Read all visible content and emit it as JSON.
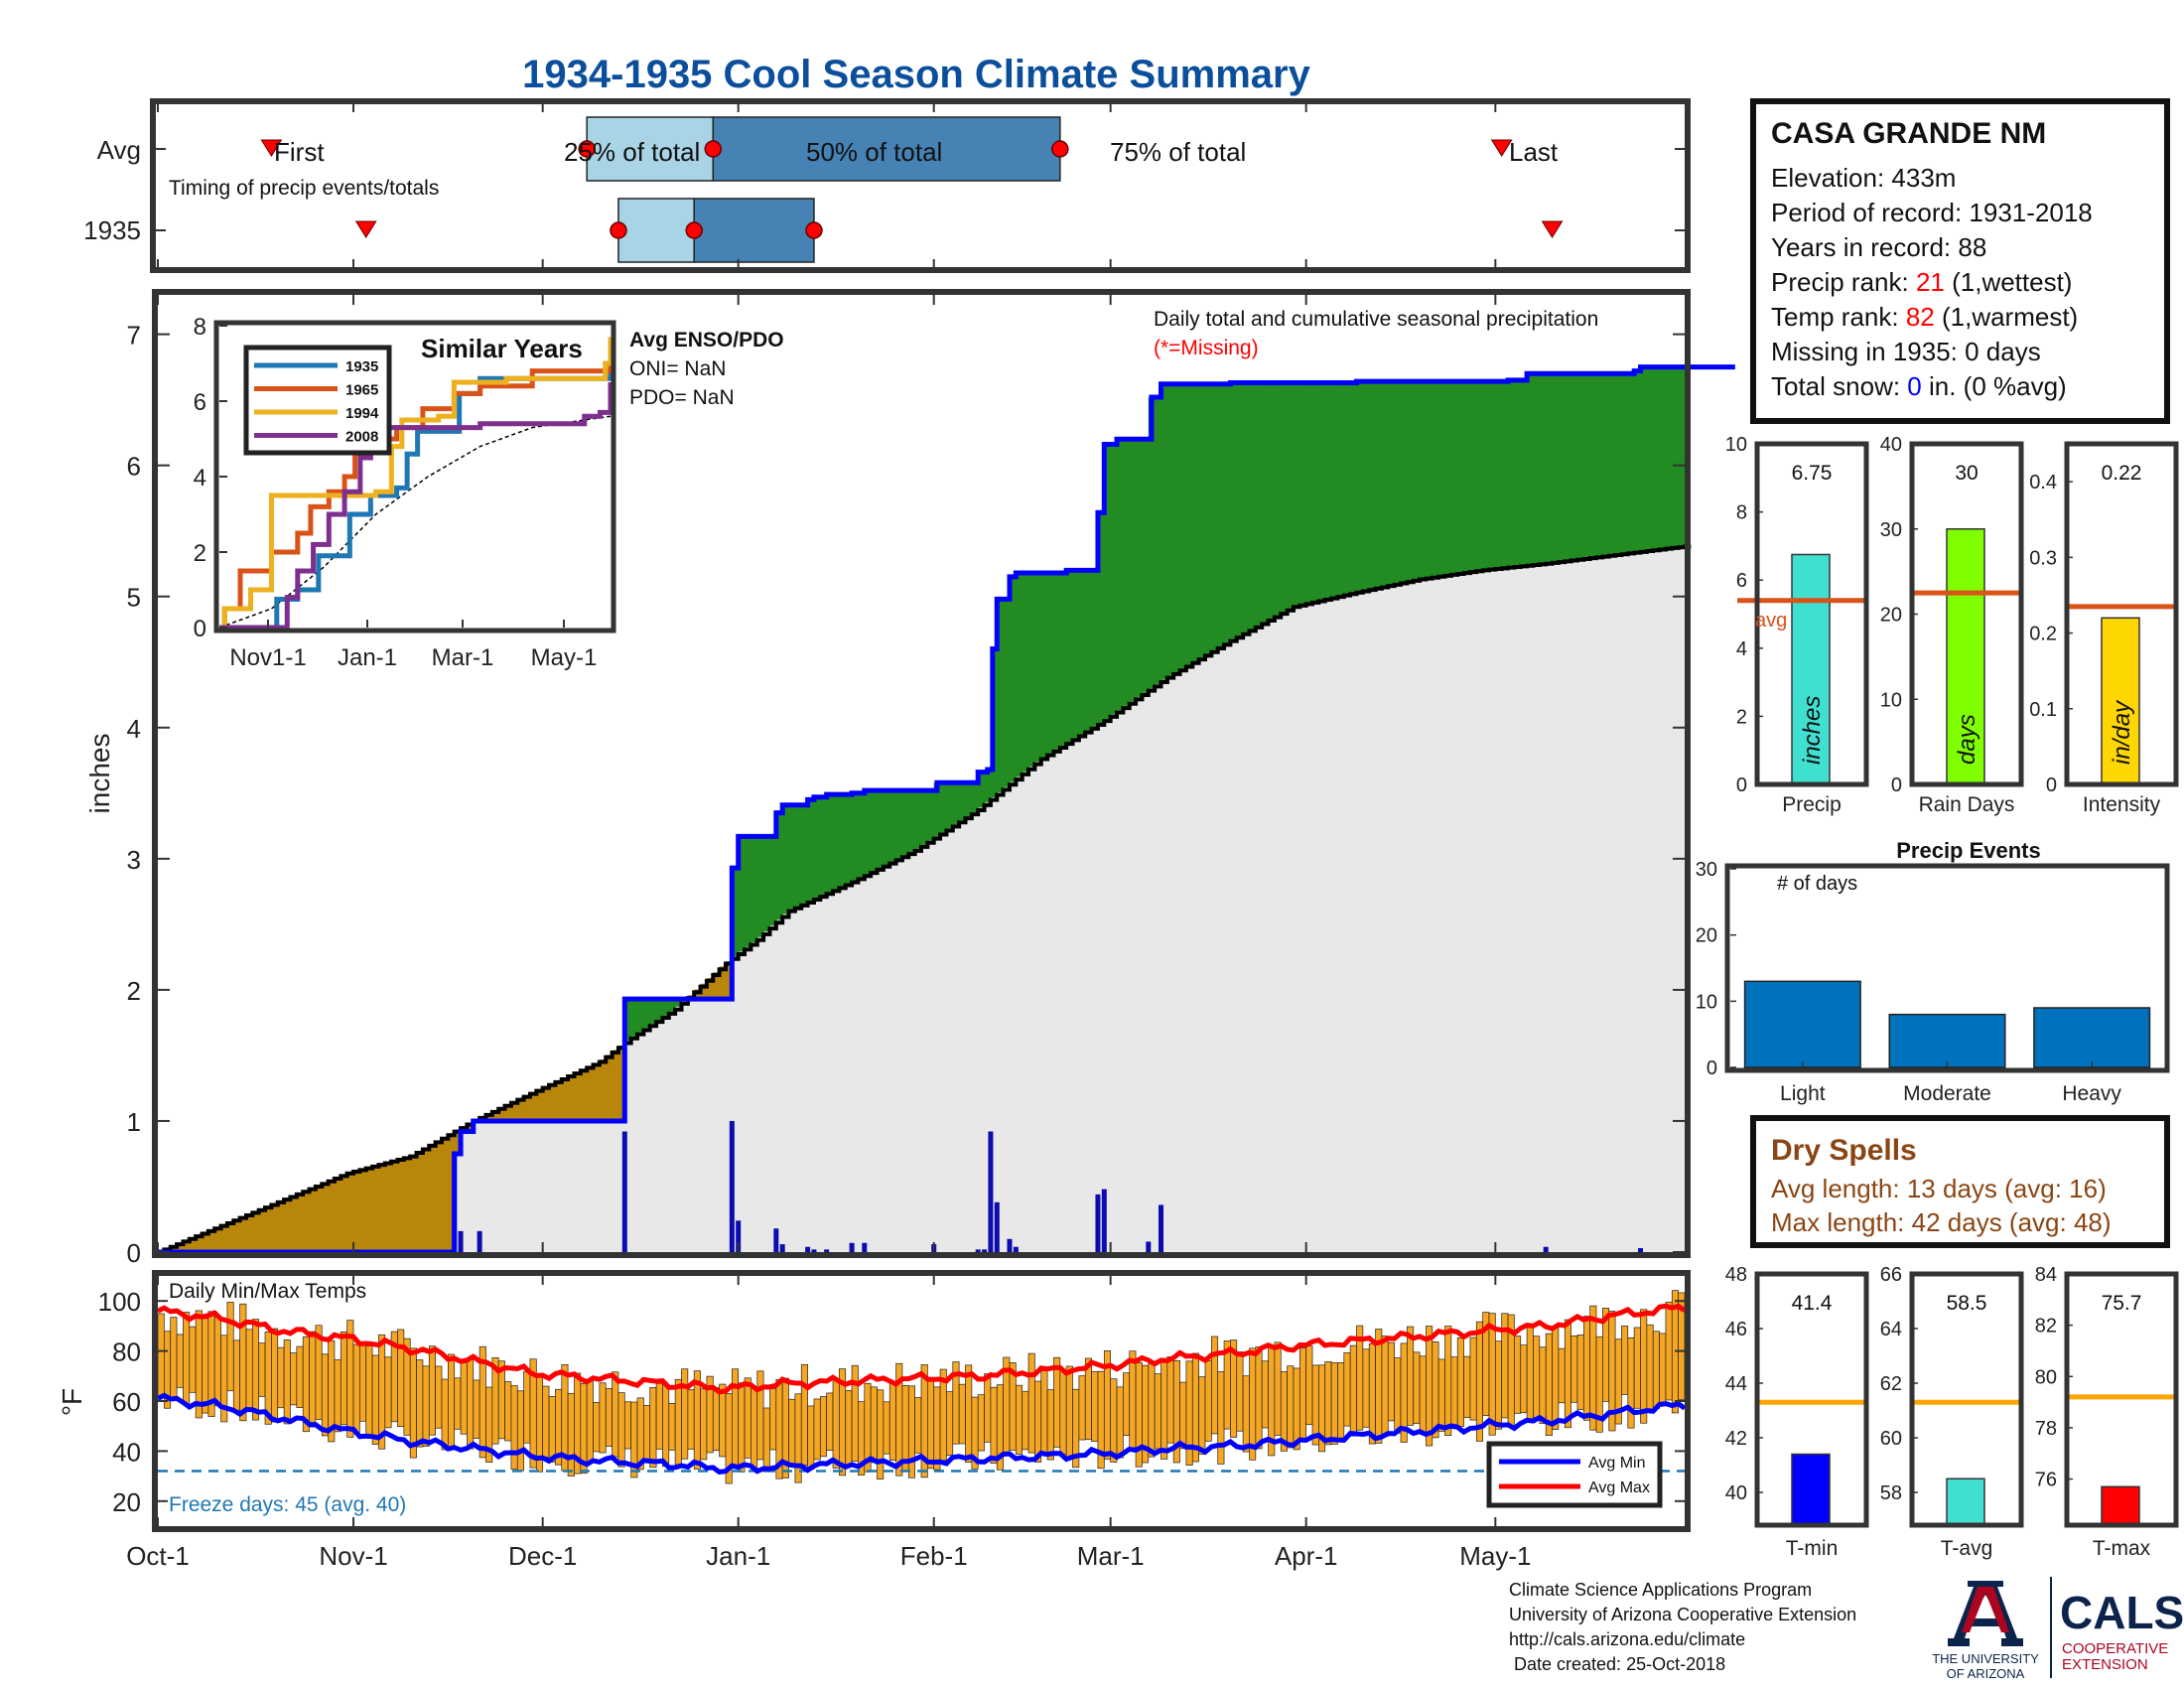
{
  "title": "1934-1935 Cool Season Climate Summary",
  "colors": {
    "title": "#0b4f9c",
    "light_box": "#a8d4e6",
    "dark_box": "#4682b4",
    "precip_line": "#0000ff",
    "green_fill": "#228b22",
    "brown_fill": "#b8860b",
    "avg_fill": "#e8e8e8",
    "temp_bar": "#f5a623",
    "avg_max": "#ff0000",
    "avg_min": "#0000ff",
    "freeze": "#1f77b4",
    "rank_red": "#ff0000",
    "snow_blue": "#0000ff",
    "dry_spells": "#8b4513",
    "s1935": "#1f77b4",
    "s1965": "#d95319",
    "s1994": "#edb120",
    "s2008": "#7e2f8e",
    "precip_bar": "#40e0d0",
    "raindays_bar": "#7fff00",
    "intensity_bar": "#ffd700",
    "avg_line": "#d95319",
    "events_bar": "#0072bd",
    "tavg_line": "#ffa500",
    "tmin_bar": "#0000ff",
    "tavg_bar": "#40e0d0",
    "tmax_bar": "#ff0000",
    "ua_red": "#ab0520",
    "ua_blue": "#0c234b"
  },
  "timing": {
    "row_labels": [
      "Avg",
      "1935"
    ],
    "first_label": "First",
    "last_label": "Last",
    "p25_label": "25% of total",
    "p50_label": "50% of total",
    "p75_label": "75% of total",
    "caption": "Timing of precip events/totals",
    "avg": {
      "first": "Oct-19",
      "p25": "Dec-8",
      "p50": "Dec-28",
      "p75": "Feb-21",
      "last": "May-2"
    },
    "y1935": {
      "first": "Nov-3",
      "p25": "Dec-13",
      "p50": "Dec-25",
      "p75": "Jan-13",
      "last": "May-10"
    }
  },
  "station": {
    "name": "CASA GRANDE NM",
    "elevation_label": "Elevation: 433m",
    "period_label": "Period of record: 1931-2018",
    "years_label": "Years in record: 88",
    "precip_rank_prefix": "Precip rank: ",
    "precip_rank": "21",
    "precip_rank_suffix": " (1,wettest)",
    "temp_rank_prefix": "Temp rank: ",
    "temp_rank": "82",
    "temp_rank_suffix": " (1,warmest)",
    "missing_label": "Missing in 1935: 0 days",
    "snow_prefix": "Total snow: ",
    "snow_value": "0",
    "snow_suffix": " in. (0 %avg)"
  },
  "main_chart": {
    "ylabel": "inches",
    "ylim": [
      0,
      7.3
    ],
    "yticks": [
      "0",
      "1",
      "2",
      "3",
      "4",
      "5",
      "6",
      "7"
    ],
    "legend_line1": "Daily total and cumulative seasonal precipitation",
    "legend_line2": "(*=Missing)",
    "enso_title": "Avg ENSO/PDO",
    "oni_label": "ONI= NaN",
    "pdo_label": "PDO= NaN"
  },
  "chart_data": [
    {
      "type": "line",
      "title": "Daily total and cumulative seasonal precipitation",
      "ylabel": "inches",
      "ylim": [
        0,
        7.3
      ],
      "x_labels": [
        "Oct-1",
        "Nov-1",
        "Dec-1",
        "Jan-1",
        "Feb-1",
        "Mar-1",
        "Apr-1",
        "May-1"
      ],
      "cumulative_1935": [
        [
          0,
          0
        ],
        [
          46,
          0
        ],
        [
          47,
          0.75
        ],
        [
          48,
          0.92
        ],
        [
          50,
          1.0
        ],
        [
          73,
          1.0
        ],
        [
          74,
          1.93
        ],
        [
          90,
          1.93
        ],
        [
          91,
          2.93
        ],
        [
          92,
          3.17
        ],
        [
          97,
          3.17
        ],
        [
          98,
          3.35
        ],
        [
          99,
          3.41
        ],
        [
          102,
          3.41
        ],
        [
          103,
          3.45
        ],
        [
          104,
          3.47
        ],
        [
          106,
          3.49
        ],
        [
          110,
          3.5
        ],
        [
          112,
          3.52
        ],
        [
          123,
          3.52
        ],
        [
          123.5,
          3.58
        ],
        [
          130,
          3.66
        ],
        [
          130,
          3.66
        ],
        [
          131,
          3.66
        ],
        [
          131.5,
          3.68
        ],
        [
          132,
          3.68
        ],
        [
          132.3,
          4.6
        ],
        [
          133,
          4.98
        ],
        [
          135,
          5.15
        ],
        [
          136,
          5.18
        ],
        [
          144,
          5.2
        ],
        [
          148,
          5.2
        ],
        [
          149,
          5.64
        ],
        [
          150,
          6.16
        ],
        [
          152,
          6.2
        ],
        [
          157,
          6.2
        ],
        [
          157.5,
          6.52
        ],
        [
          159,
          6.62
        ],
        [
          162,
          6.62
        ],
        [
          170,
          6.63
        ],
        [
          190,
          6.64
        ],
        [
          214,
          6.65
        ],
        [
          217,
          6.7
        ],
        [
          234,
          6.72
        ],
        [
          235,
          6.75
        ],
        [
          250,
          6.75
        ]
      ],
      "average_cumulative": [
        [
          0,
          0
        ],
        [
          10,
          0.2
        ],
        [
          20,
          0.4
        ],
        [
          30,
          0.6
        ],
        [
          40,
          0.73
        ],
        [
          50,
          1.0
        ],
        [
          60,
          1.23
        ],
        [
          70,
          1.45
        ],
        [
          75,
          1.63
        ],
        [
          82,
          1.85
        ],
        [
          90,
          2.2
        ],
        [
          95,
          2.38
        ],
        [
          100,
          2.6
        ],
        [
          110,
          2.82
        ],
        [
          120,
          3.06
        ],
        [
          130,
          3.37
        ],
        [
          140,
          3.76
        ],
        [
          150,
          4.05
        ],
        [
          160,
          4.38
        ],
        [
          170,
          4.66
        ],
        [
          180,
          4.92
        ],
        [
          190,
          5.03
        ],
        [
          200,
          5.13
        ],
        [
          210,
          5.2
        ],
        [
          220,
          5.25
        ],
        [
          230,
          5.31
        ],
        [
          240,
          5.37
        ],
        [
          250,
          5.42
        ]
      ],
      "daily_1935": [
        [
          47,
          0.75
        ],
        [
          48,
          0.16
        ],
        [
          51,
          0.16
        ],
        [
          74,
          0.92
        ],
        [
          91,
          1.0
        ],
        [
          92,
          0.24
        ],
        [
          98,
          0.18
        ],
        [
          99,
          0.06
        ],
        [
          103,
          0.04
        ],
        [
          104,
          0.02
        ],
        [
          106,
          0.02
        ],
        [
          110,
          0.07
        ],
        [
          112,
          0.07
        ],
        [
          123,
          0.06
        ],
        [
          130,
          0.02
        ],
        [
          131,
          0.02
        ],
        [
          132,
          0.92
        ],
        [
          133,
          0.38
        ],
        [
          135,
          0.1
        ],
        [
          136,
          0.04
        ],
        [
          149,
          0.44
        ],
        [
          150,
          0.48
        ],
        [
          157,
          0.08
        ],
        [
          159,
          0.36
        ],
        [
          220,
          0.04
        ],
        [
          235,
          0.03
        ]
      ]
    },
    {
      "type": "line",
      "title": "Similar Years",
      "x_labels": [
        "Nov1-1",
        "Jan-1",
        "Mar-1",
        "May-1"
      ],
      "ylim": [
        0,
        8
      ],
      "yticks": [
        "0",
        "2",
        "4",
        "6",
        "8"
      ],
      "series": [
        {
          "name": "1935",
          "values": [
            [
              0,
              0
            ],
            [
              20,
              0
            ],
            [
              22,
              0.75
            ],
            [
              30,
              1.0
            ],
            [
              38,
              1.9
            ],
            [
              50,
              3.0
            ],
            [
              58,
              3.5
            ],
            [
              68,
              3.7
            ],
            [
              72,
              4.6
            ],
            [
              76,
              5.2
            ],
            [
              88,
              5.2
            ],
            [
              92,
              6.2
            ],
            [
              100,
              6.6
            ],
            [
              150,
              6.75
            ]
          ]
        },
        {
          "name": "1965",
          "values": [
            [
              0,
              0
            ],
            [
              2,
              0.5
            ],
            [
              8,
              1.5
            ],
            [
              18,
              1.5
            ],
            [
              20,
              2.0
            ],
            [
              30,
              2.5
            ],
            [
              35,
              3.2
            ],
            [
              42,
              3.6
            ],
            [
              48,
              4.0
            ],
            [
              52,
              4.6
            ],
            [
              56,
              5.0
            ],
            [
              68,
              5.3
            ],
            [
              78,
              5.8
            ],
            [
              90,
              6.2
            ],
            [
              100,
              6.4
            ],
            [
              120,
              6.8
            ],
            [
              150,
              7.0
            ]
          ]
        },
        {
          "name": "1994",
          "values": [
            [
              0,
              0
            ],
            [
              2,
              0.5
            ],
            [
              12,
              1.0
            ],
            [
              18,
              1.0
            ],
            [
              20,
              3.5
            ],
            [
              40,
              3.5
            ],
            [
              60,
              3.6
            ],
            [
              66,
              4.8
            ],
            [
              70,
              5.5
            ],
            [
              84,
              5.6
            ],
            [
              90,
              6.5
            ],
            [
              110,
              6.6
            ],
            [
              140,
              6.6
            ],
            [
              148,
              7.0
            ],
            [
              150,
              7.7
            ]
          ]
        },
        {
          "name": "2008",
          "values": [
            [
              0,
              0
            ],
            [
              24,
              0
            ],
            [
              26,
              0.8
            ],
            [
              30,
              1.5
            ],
            [
              36,
              2.2
            ],
            [
              42,
              3.0
            ],
            [
              48,
              3.6
            ],
            [
              54,
              4.5
            ],
            [
              58,
              5.2
            ],
            [
              64,
              5.3
            ],
            [
              100,
              5.4
            ],
            [
              132,
              5.4
            ],
            [
              140,
              5.6
            ],
            [
              146,
              5.7
            ],
            [
              150,
              6.5
            ]
          ]
        }
      ],
      "average_cumulative": [
        [
          0,
          0
        ],
        [
          20,
          0.5
        ],
        [
          40,
          1.6
        ],
        [
          60,
          3.0
        ],
        [
          80,
          4.0
        ],
        [
          100,
          4.8
        ],
        [
          120,
          5.3
        ],
        [
          140,
          5.5
        ],
        [
          150,
          5.6
        ]
      ]
    },
    {
      "type": "bar",
      "categories": [
        "Precip",
        "Rain Days",
        "Intensity"
      ],
      "values": [
        6.75,
        30,
        0.22
      ],
      "units": [
        "inches",
        "days",
        "in/day"
      ],
      "averages": [
        5.4,
        22.5,
        0.235
      ],
      "ylims": [
        [
          0,
          10
        ],
        [
          0,
          40
        ],
        [
          0,
          0.45
        ]
      ],
      "avg_label": "avg"
    },
    {
      "type": "bar",
      "title": "Precip Events",
      "ylabel": "# of days",
      "categories": [
        "Light",
        "Moderate",
        "Heavy"
      ],
      "values": [
        13,
        8,
        9
      ],
      "ylim": [
        0,
        30
      ]
    },
    {
      "type": "bar",
      "title": "Daily Min/Max Temps",
      "ylabel": "°F",
      "ylim": [
        10,
        110
      ],
      "x_labels": [
        "Oct-1",
        "Nov-1",
        "Dec-1",
        "Jan-1",
        "Feb-1",
        "Mar-1",
        "Apr-1",
        "May-1"
      ],
      "avg_max": [
        [
          0,
          96
        ],
        [
          10,
          93
        ],
        [
          20,
          88
        ],
        [
          30,
          85
        ],
        [
          40,
          81
        ],
        [
          50,
          76
        ],
        [
          60,
          71
        ],
        [
          70,
          69
        ],
        [
          80,
          67
        ],
        [
          90,
          65
        ],
        [
          100,
          67
        ],
        [
          110,
          68
        ],
        [
          120,
          69
        ],
        [
          130,
          70
        ],
        [
          140,
          72
        ],
        [
          150,
          74
        ],
        [
          160,
          77
        ],
        [
          170,
          79
        ],
        [
          180,
          82
        ],
        [
          190,
          84
        ],
        [
          200,
          86
        ],
        [
          210,
          88
        ],
        [
          220,
          90
        ],
        [
          230,
          94
        ],
        [
          240,
          97
        ],
        [
          250,
          100
        ]
      ],
      "avg_min": [
        [
          0,
          61
        ],
        [
          10,
          58
        ],
        [
          20,
          53
        ],
        [
          30,
          48
        ],
        [
          40,
          44
        ],
        [
          50,
          41
        ],
        [
          60,
          38
        ],
        [
          70,
          36
        ],
        [
          80,
          35
        ],
        [
          90,
          33
        ],
        [
          100,
          34
        ],
        [
          110,
          35
        ],
        [
          120,
          36
        ],
        [
          130,
          37
        ],
        [
          140,
          38
        ],
        [
          150,
          39
        ],
        [
          160,
          41
        ],
        [
          170,
          42
        ],
        [
          180,
          44
        ],
        [
          190,
          46
        ],
        [
          200,
          48
        ],
        [
          210,
          50
        ],
        [
          220,
          52
        ],
        [
          230,
          55
        ],
        [
          240,
          58
        ],
        [
          250,
          61
        ]
      ],
      "freeze_line": 32,
      "freeze_label": "Freeze days: 45 (avg. 40)",
      "legend": [
        "Avg Min",
        "Avg Max"
      ]
    },
    {
      "type": "bar",
      "categories": [
        "T-min",
        "T-avg",
        "T-max"
      ],
      "values": [
        41.4,
        58.5,
        75.7
      ],
      "averages": [
        43.3,
        61.3,
        79.2
      ],
      "ylims": [
        [
          38.8,
          48
        ],
        [
          56.8,
          66
        ],
        [
          74.2,
          84
        ]
      ]
    }
  ],
  "dry_spells": {
    "title": "Dry Spells",
    "avg_label": "Avg length: 13 days (avg: 16)",
    "max_label": "Max length: 42 days (avg: 48)"
  },
  "footer": {
    "line1": "Climate Science Applications Program",
    "line2": "University of Arizona Cooperative Extension",
    "line3": "http://cals.arizona.edu/climate",
    "line4": " Date created: 25-Oct-2018",
    "ua_line1": "THE UNIVERSITY",
    "ua_line2": "OF ARIZONA",
    "cals": "CALS",
    "coop1": "COOPERATIVE",
    "coop2": "EXTENSION"
  }
}
